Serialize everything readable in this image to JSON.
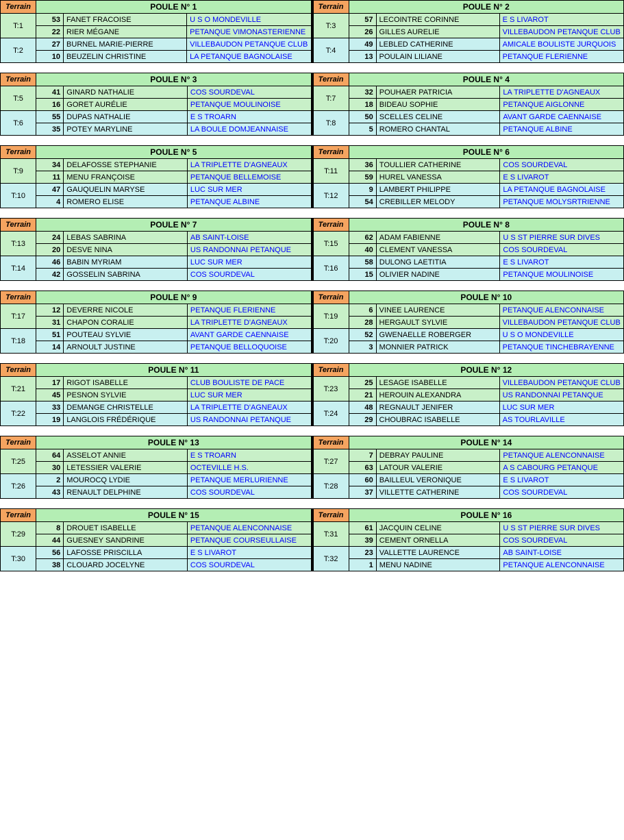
{
  "labels": {
    "terrain": "Terrain",
    "poule_prefix": "POULE N°"
  },
  "colors": {
    "header_orange": "#f4a460",
    "header_green": "#b4eeb4",
    "row_green": "#c8f0c8",
    "row_blue": "#c8f0f0",
    "link": "#0000ff"
  },
  "blocks": [
    {
      "left": {
        "poule": 1,
        "terrains": [
          {
            "t": "T:1",
            "rows": [
              {
                "n": 53,
                "name": "FANET FRACOISE",
                "club": "U S O MONDEVILLE",
                "bg": "green"
              },
              {
                "n": 22,
                "name": "RIER MÉGANE",
                "club": "PETANQUE VIMONASTERIENNE",
                "bg": "green"
              }
            ]
          },
          {
            "t": "T:2",
            "rows": [
              {
                "n": 27,
                "name": "BURNEL MARIE-PIERRE",
                "club": "VILLEBAUDON PETANQUE CLUB",
                "bg": "blue"
              },
              {
                "n": 10,
                "name": "BEUZELIN CHRISTINE",
                "club": "LA PETANQUE BAGNOLAISE",
                "bg": "blue"
              }
            ]
          }
        ]
      },
      "right": {
        "poule": 2,
        "terrains": [
          {
            "t": "T:3",
            "rows": [
              {
                "n": 57,
                "name": "LECOINTRE CORINNE",
                "club": "E S LIVAROT",
                "bg": "green"
              },
              {
                "n": 26,
                "name": "GILLES AURELIE",
                "club": "VILLEBAUDON PETANQUE CLUB",
                "bg": "green"
              }
            ]
          },
          {
            "t": "T:4",
            "rows": [
              {
                "n": 49,
                "name": "LEBLED CATHERINE",
                "club": "AMICALE BOULISTE JURQUOIS",
                "bg": "blue"
              },
              {
                "n": 13,
                "name": "POULAIN LILIANE",
                "club": "PETANQUE FLERIENNE",
                "bg": "blue"
              }
            ]
          }
        ]
      }
    },
    {
      "left": {
        "poule": 3,
        "terrains": [
          {
            "t": "T:5",
            "rows": [
              {
                "n": 41,
                "name": "GINARD NATHALIE",
                "club": "COS SOURDEVAL",
                "bg": "green"
              },
              {
                "n": 16,
                "name": "GORET AURÉLIE",
                "club": "PETANQUE MOULINOISE",
                "bg": "green"
              }
            ]
          },
          {
            "t": "T:6",
            "rows": [
              {
                "n": 55,
                "name": "DUPAS NATHALIE",
                "club": "E  S   TROARN",
                "bg": "blue"
              },
              {
                "n": 35,
                "name": "POTEY MARYLINE",
                "club": "LA BOULE DOMJEANNAISE",
                "bg": "blue"
              }
            ]
          }
        ]
      },
      "right": {
        "poule": 4,
        "terrains": [
          {
            "t": "T:7",
            "rows": [
              {
                "n": 32,
                "name": "POUHAER PATRICIA",
                "club": "LA TRIPLETTE D'AGNEAUX",
                "bg": "green"
              },
              {
                "n": 18,
                "name": "BIDEAU SOPHIE",
                "club": "PETANQUE AIGLONNE",
                "bg": "green"
              }
            ]
          },
          {
            "t": "T:8",
            "rows": [
              {
                "n": 50,
                "name": "SCELLES CELINE",
                "club": "AVANT GARDE CAENNAISE",
                "bg": "blue"
              },
              {
                "n": 5,
                "name": "ROMERO CHANTAL",
                "club": "PETANQUE ALBINE",
                "bg": "blue"
              }
            ]
          }
        ]
      }
    },
    {
      "left": {
        "poule": 5,
        "terrains": [
          {
            "t": "T:9",
            "rows": [
              {
                "n": 34,
                "name": "DELAFOSSE STEPHANIE",
                "club": "LA TRIPLETTE D'AGNEAUX",
                "bg": "green"
              },
              {
                "n": 11,
                "name": "MENU FRANÇOISE",
                "club": "PETANQUE BELLEMOISE",
                "bg": "green"
              }
            ]
          },
          {
            "t": "T:10",
            "rows": [
              {
                "n": 47,
                "name": "GAUQUELIN MARYSE",
                "club": "LUC SUR MER",
                "bg": "blue"
              },
              {
                "n": 4,
                "name": "ROMERO ELISE",
                "club": "PETANQUE ALBINE",
                "bg": "blue"
              }
            ]
          }
        ]
      },
      "right": {
        "poule": 6,
        "terrains": [
          {
            "t": "T:11",
            "rows": [
              {
                "n": 36,
                "name": "TOULLIER CATHERINE",
                "club": "COS SOURDEVAL",
                "bg": "green"
              },
              {
                "n": 59,
                "name": "HUREL VANESSA",
                "club": "E S LIVAROT",
                "bg": "green"
              }
            ]
          },
          {
            "t": "T:12",
            "rows": [
              {
                "n": 9,
                "name": "LAMBERT PHILIPPE",
                "club": "LA PETANQUE BAGNOLAISE",
                "bg": "blue"
              },
              {
                "n": 54,
                "name": "CREBILLER MELODY",
                "club": "PETANQUE MOLYSRTRIENNE",
                "bg": "blue"
              }
            ]
          }
        ]
      }
    },
    {
      "left": {
        "poule": 7,
        "terrains": [
          {
            "t": "T:13",
            "rows": [
              {
                "n": 24,
                "name": "LEBAS SABRINA",
                "club": "AB SAINT-LOISE",
                "bg": "green"
              },
              {
                "n": 20,
                "name": "DESVE NINA",
                "club": "US RANDONNAI PETANQUE",
                "bg": "green"
              }
            ]
          },
          {
            "t": "T:14",
            "rows": [
              {
                "n": 46,
                "name": "BABIN MYRIAM",
                "club": "LUC SUR MER",
                "bg": "blue"
              },
              {
                "n": 42,
                "name": "GOSSELIN SABRINA",
                "club": "COS SOURDEVAL",
                "bg": "blue"
              }
            ]
          }
        ]
      },
      "right": {
        "poule": 8,
        "terrains": [
          {
            "t": "T:15",
            "rows": [
              {
                "n": 62,
                "name": "ADAM FABIENNE",
                "club": "U S ST PIERRE SUR DIVES",
                "bg": "green"
              },
              {
                "n": 40,
                "name": "CLEMENT VANESSA",
                "club": "COS SOURDEVAL",
                "bg": "green"
              }
            ]
          },
          {
            "t": "T:16",
            "rows": [
              {
                "n": 58,
                "name": "DULONG LAETITIA",
                "club": "E S LIVAROT",
                "bg": "blue"
              },
              {
                "n": 15,
                "name": "OLIVIER NADINE",
                "club": "PETANQUE MOULINOISE",
                "bg": "blue"
              }
            ]
          }
        ]
      }
    },
    {
      "left": {
        "poule": 9,
        "terrains": [
          {
            "t": "T:17",
            "rows": [
              {
                "n": 12,
                "name": "DEVERRE NICOLE",
                "club": "PETANQUE FLERIENNE",
                "bg": "green"
              },
              {
                "n": 31,
                "name": "CHAPON CORALIE",
                "club": "LA TRIPLETTE D'AGNEAUX",
                "bg": "green"
              }
            ]
          },
          {
            "t": "T:18",
            "rows": [
              {
                "n": 51,
                "name": "POUTEAU SYLVIE",
                "club": "AVANT GARDE CAENNAISE",
                "bg": "blue"
              },
              {
                "n": 14,
                "name": "ARNOULT JUSTINE",
                "club": "PETANQUE BELLOQUOISE",
                "bg": "blue"
              }
            ]
          }
        ]
      },
      "right": {
        "poule": 10,
        "terrains": [
          {
            "t": "T:19",
            "rows": [
              {
                "n": 6,
                "name": "VINEE LAURENCE",
                "club": "PETANQUE ALENCONNAISE",
                "bg": "green"
              },
              {
                "n": 28,
                "name": "HERGAULT SYLVIE",
                "club": "VILLEBAUDON PETANQUE CLUB",
                "bg": "green"
              }
            ]
          },
          {
            "t": "T:20",
            "rows": [
              {
                "n": 52,
                "name": "GWENAELLE ROBERGER",
                "club": "U S O MONDEVILLE",
                "bg": "blue"
              },
              {
                "n": 3,
                "name": "MONNIER PATRICK",
                "club": "PETANQUE TINCHEBRAYENNE",
                "bg": "blue"
              }
            ]
          }
        ]
      }
    },
    {
      "left": {
        "poule": 11,
        "terrains": [
          {
            "t": "T:21",
            "rows": [
              {
                "n": 17,
                "name": "RIGOT ISABELLE",
                "club": "CLUB BOULISTE DE PACE",
                "bg": "green"
              },
              {
                "n": 45,
                "name": "PESNON SYLVIE",
                "club": "LUC SUR MER",
                "bg": "green"
              }
            ]
          },
          {
            "t": "T:22",
            "rows": [
              {
                "n": 33,
                "name": "DEMANGE CHRISTELLE",
                "club": "LA TRIPLETTE D'AGNEAUX",
                "bg": "blue"
              },
              {
                "n": 19,
                "name": "LANGLOIS FRÉDÉRIQUE",
                "club": "US RANDONNAI PETANQUE",
                "bg": "blue"
              }
            ]
          }
        ]
      },
      "right": {
        "poule": 12,
        "terrains": [
          {
            "t": "T:23",
            "rows": [
              {
                "n": 25,
                "name": "LESAGE ISABELLE",
                "club": "VILLEBAUDON PETANQUE CLUB",
                "bg": "green"
              },
              {
                "n": 21,
                "name": "HEROUIN ALEXANDRA",
                "club": "US RANDONNAI PETANQUE",
                "bg": "green"
              }
            ]
          },
          {
            "t": "T:24",
            "rows": [
              {
                "n": 48,
                "name": "REGNAULT JENIFER",
                "club": "LUC SUR MER",
                "bg": "blue"
              },
              {
                "n": 29,
                "name": "CHOUBRAC ISABELLE",
                "club": "AS TOURLAVILLE",
                "bg": "blue"
              }
            ]
          }
        ]
      }
    },
    {
      "left": {
        "poule": 13,
        "terrains": [
          {
            "t": "T:25",
            "rows": [
              {
                "n": 64,
                "name": "ASSELOT ANNIE",
                "club": "E  S   TROARN",
                "bg": "green"
              },
              {
                "n": 30,
                "name": "LETESSIER VALERIE",
                "club": "OCTEVILLE H.S.",
                "bg": "green"
              }
            ]
          },
          {
            "t": "T:26",
            "rows": [
              {
                "n": 2,
                "name": "MOUROCQ LYDIE",
                "club": "PETANQUE MERLURIENNE",
                "bg": "blue"
              },
              {
                "n": 43,
                "name": "RENAULT DELPHINE",
                "club": "COS SOURDEVAL",
                "bg": "blue"
              }
            ]
          }
        ]
      },
      "right": {
        "poule": 14,
        "terrains": [
          {
            "t": "T:27",
            "rows": [
              {
                "n": 7,
                "name": "DEBRAY PAULINE",
                "club": "PETANQUE ALENCONNAISE",
                "bg": "green"
              },
              {
                "n": 63,
                "name": "LATOUR VALERIE",
                "club": "A S CABOURG PETANQUE",
                "bg": "green"
              }
            ]
          },
          {
            "t": "T:28",
            "rows": [
              {
                "n": 60,
                "name": "BAILLEUL VERONIQUE",
                "club": "E S LIVAROT",
                "bg": "blue"
              },
              {
                "n": 37,
                "name": "VILLETTE CATHERINE",
                "club": "COS SOURDEVAL",
                "bg": "blue"
              }
            ]
          }
        ]
      }
    },
    {
      "left": {
        "poule": 15,
        "terrains": [
          {
            "t": "T:29",
            "rows": [
              {
                "n": 8,
                "name": "DROUET ISABELLE",
                "club": "PETANQUE ALENCONNAISE",
                "bg": "green"
              },
              {
                "n": 44,
                "name": "GUESNEY SANDRINE",
                "club": "PETANQUE COURSEULLAISE",
                "bg": "green"
              }
            ]
          },
          {
            "t": "T:30",
            "rows": [
              {
                "n": 56,
                "name": "LAFOSSE PRISCILLA",
                "club": "E S LIVAROT",
                "bg": "blue"
              },
              {
                "n": 38,
                "name": "CLOUARD JOCELYNE",
                "club": "COS SOURDEVAL",
                "bg": "blue"
              }
            ]
          }
        ]
      },
      "right": {
        "poule": 16,
        "terrains": [
          {
            "t": "T:31",
            "rows": [
              {
                "n": 61,
                "name": "JACQUIN CELINE",
                "club": "U S ST PIERRE SUR DIVES",
                "bg": "green"
              },
              {
                "n": 39,
                "name": "CEMENT ORNELLA",
                "club": "COS SOURDEVAL",
                "bg": "green"
              }
            ]
          },
          {
            "t": "T:32",
            "rows": [
              {
                "n": 23,
                "name": "VALLETTE LAURENCE",
                "club": "AB SAINT-LOISE",
                "bg": "blue"
              },
              {
                "n": 1,
                "name": "MENU NADINE",
                "club": "PETANQUE ALENCONNAISE",
                "bg": "blue"
              }
            ]
          }
        ]
      }
    }
  ]
}
